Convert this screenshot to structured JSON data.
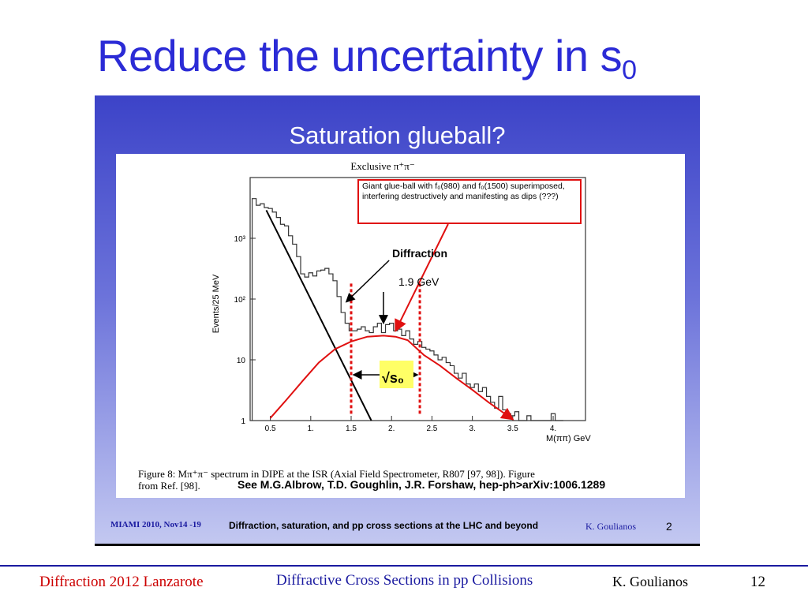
{
  "slide": {
    "title_main": "Reduce the uncertainty in s",
    "title_sub": "0"
  },
  "panel": {
    "title": "Saturation glueball?",
    "inner_footer_left": "MIAMI 2010, Nov14 -19",
    "inner_footer_center": "Diffraction, saturation, and pp cross sections at the LHC and beyond",
    "inner_footer_author": "K. Goulianos",
    "inner_footer_page": "2"
  },
  "chart_data": {
    "type": "line",
    "title": "Exclusive π⁺π⁻",
    "xlabel": "M(ππ) GeV",
    "ylabel": "Events/25 MeV",
    "x_ticks": [
      "0.5",
      "1.",
      "1.5",
      "2.",
      "2.5",
      "3.",
      "3.5",
      "4."
    ],
    "y_ticks": [
      "1",
      "10",
      "10²",
      "10³"
    ],
    "log_y": true,
    "xlim": [
      0.25,
      4.4
    ],
    "ylim": [
      1,
      10000
    ],
    "series": [
      {
        "values_x": [
          0.3,
          0.35,
          0.4,
          0.45,
          0.5,
          0.55,
          0.6,
          0.65,
          0.7,
          0.75,
          0.8,
          0.85,
          0.9,
          0.95,
          1.0,
          1.05,
          1.1,
          1.15,
          1.2,
          1.25,
          1.3,
          1.35,
          1.4,
          1.45,
          1.5,
          1.55,
          1.6,
          1.65,
          1.7,
          1.75,
          1.8,
          1.85,
          1.9,
          1.95,
          2.0,
          2.05,
          2.1,
          2.15,
          2.2,
          2.25,
          2.3,
          2.35,
          2.4,
          2.45,
          2.5,
          2.55,
          2.6,
          2.65,
          2.7,
          2.75,
          2.8,
          2.85,
          2.9,
          2.95,
          3.0,
          3.05,
          3.1,
          3.15,
          3.2,
          3.25,
          3.3,
          3.35,
          3.4,
          3.45,
          3.5,
          3.55,
          3.6,
          3.65,
          3.7,
          3.75,
          3.8,
          3.85,
          3.9,
          3.95,
          4.0,
          4.05,
          4.1
        ],
        "values_y": [
          4500,
          3500,
          3700,
          3200,
          3100,
          2700,
          2200,
          1700,
          1600,
          1100,
          800,
          500,
          260,
          230,
          270,
          240,
          290,
          300,
          320,
          260,
          200,
          110,
          60,
          40,
          30,
          30,
          32,
          35,
          30,
          28,
          35,
          40,
          28,
          38,
          40,
          30,
          32,
          25,
          30,
          22,
          18,
          20,
          16,
          15,
          14,
          12,
          10,
          11,
          9,
          8,
          6,
          5,
          6,
          4,
          3.5,
          4,
          3,
          3.5,
          2.5,
          2,
          1.6,
          2.5,
          1.5,
          1.3,
          1.2,
          1.4,
          1,
          1,
          1.2,
          1,
          1,
          1,
          1,
          1,
          1.3,
          1,
          1
        ]
      },
      {
        "name": "Diffraction",
        "values_x": [
          0.45,
          1.75
        ],
        "values_y": [
          2900,
          1
        ]
      },
      {
        "values_x": [
          0.5,
          0.7,
          0.9,
          1.1,
          1.3,
          1.5,
          1.7,
          1.9,
          2.05,
          2.2,
          2.4,
          2.6,
          2.8,
          3.0,
          3.2,
          3.4,
          3.5
        ],
        "values_y": [
          1.1,
          2.2,
          4.5,
          9,
          15,
          20,
          24,
          25,
          24,
          21,
          12,
          8,
          5,
          3.2,
          2,
          1.3,
          1.05
        ]
      }
    ],
    "annotations": [
      {
        "text": "Giant glue-ball with f₀(980) and f₀(1500) superimposed, interfering destructively and manifesting as dips (???)"
      },
      {
        "text": "Diffraction"
      },
      {
        "text": "1.9 GeV"
      },
      {
        "text": "√s₀"
      }
    ],
    "colors": {
      "data": "#333333",
      "diffraction": "#000000",
      "fit": "#e01010",
      "marker": "#e01010",
      "highlight": "#ffff66"
    }
  },
  "caption": {
    "line1": "Figure 8: Mπ⁺π⁻ spectrum in DIPE at the ISR (Axial Field Spectrometer, R807 [97, 98]). Figure",
    "line2": "from Ref. [98].",
    "ref": "See M.G.Albrow, T.D. Goughlin, J.R. Forshaw, hep-ph>arXiv:1006.1289"
  },
  "footer": {
    "left": "Diffraction 2012 Lanzarote",
    "center": "Diffractive Cross Sections in pp Collisions",
    "author": "K. Goulianos",
    "page": "12"
  }
}
